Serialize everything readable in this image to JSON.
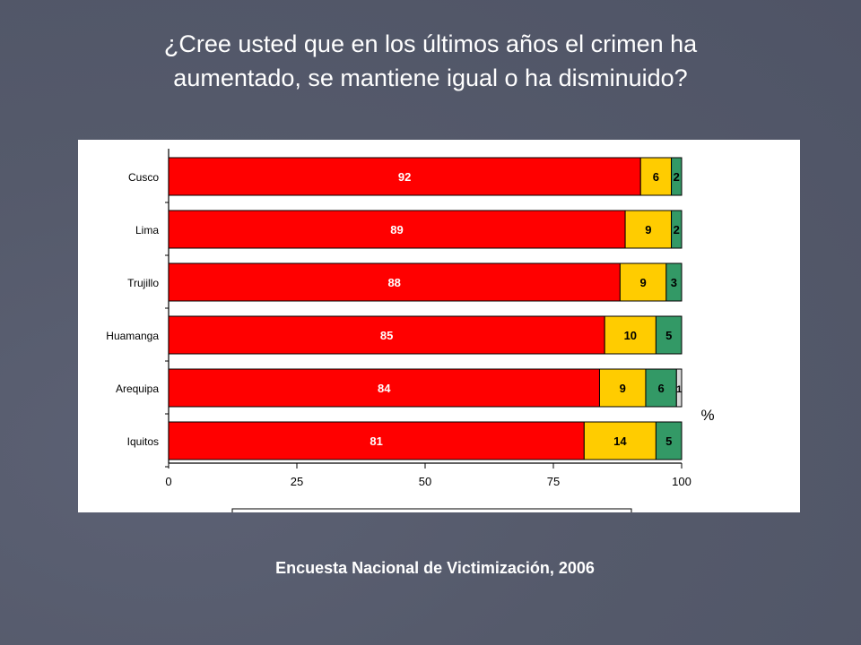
{
  "slide": {
    "title_line1": "¿Cree usted que en los últimos años el crimen ha",
    "title_line2": "aumentado, se mantiene igual o ha disminuido?",
    "caption": "Encuesta Nacional de Victimización, 2006"
  },
  "chart_data": {
    "type": "bar",
    "orientation": "horizontal",
    "stacked": true,
    "categories": [
      "Cusco",
      "Lima",
      "Trujillo",
      "Huamanga",
      "Arequipa",
      "Iquitos"
    ],
    "series": [
      {
        "values": [
          92,
          89,
          88,
          85,
          84,
          81
        ],
        "color": "#ff0000"
      },
      {
        "values": [
          6,
          9,
          9,
          10,
          9,
          14
        ],
        "color": "#ffcc00"
      },
      {
        "values": [
          2,
          2,
          3,
          5,
          6,
          5
        ],
        "color": "#339966"
      },
      {
        "values": [
          0,
          0,
          0,
          0,
          1,
          0
        ],
        "color": "#d9d9d9"
      }
    ],
    "xlim": [
      0,
      100
    ],
    "xticks": [
      "0",
      "25",
      "50",
      "75",
      "100"
    ],
    "unit_label": "%",
    "grid": false
  }
}
